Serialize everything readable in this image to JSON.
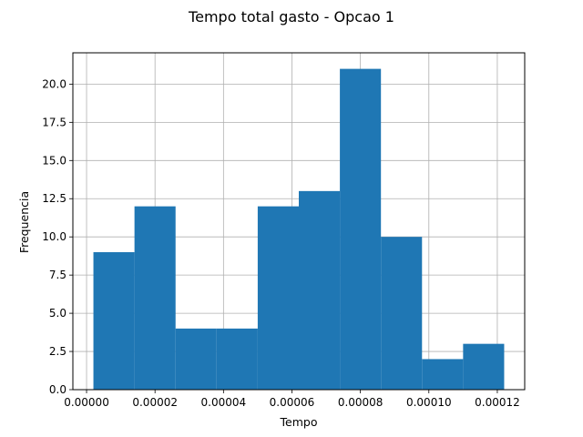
{
  "chart_data": {
    "type": "bar",
    "subtype": "histogram",
    "title": "Tempo total gasto - Opcao 1",
    "xlabel": "Tempo",
    "ylabel": "Frequencia",
    "bin_edges": [
      2e-06,
      1.4e-05,
      2.6e-05,
      3.8e-05,
      5e-05,
      6.2e-05,
      7.4e-05,
      8.6e-05,
      9.8e-05,
      0.00011,
      0.000122
    ],
    "values": [
      9,
      12,
      4,
      4,
      12,
      13,
      21,
      10,
      2,
      3
    ],
    "xlim": [
      -4e-06,
      0.000128
    ],
    "ylim": [
      0,
      22.05
    ],
    "x_ticks": [
      0,
      2e-05,
      4e-05,
      6e-05,
      8e-05,
      0.0001,
      0.00012
    ],
    "x_tick_labels": [
      "0.00000",
      "0.00002",
      "0.00004",
      "0.00006",
      "0.00008",
      "0.00010",
      "0.00012"
    ],
    "y_ticks": [
      0,
      2.5,
      5,
      7.5,
      10,
      12.5,
      15,
      17.5,
      20
    ],
    "y_tick_labels": [
      "0.0",
      "2.5",
      "5.0",
      "7.5",
      "10.0",
      "12.5",
      "15.0",
      "17.5",
      "20.0"
    ],
    "grid": true,
    "bar_color": "#1f77b4",
    "grid_color": "#b0b0b0"
  }
}
